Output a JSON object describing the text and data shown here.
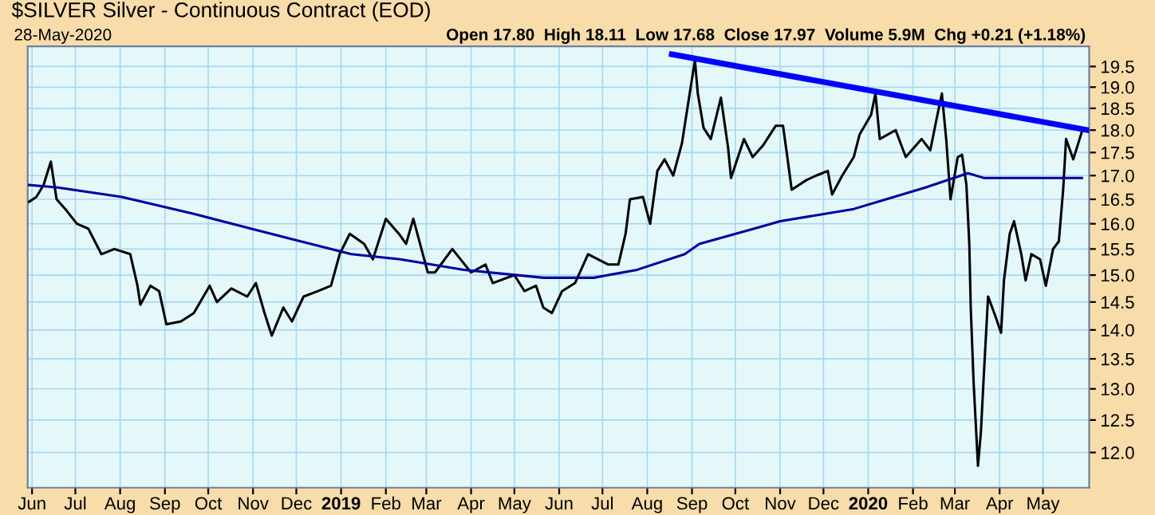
{
  "chart_data": {
    "type": "line",
    "title": "$SILVER Silver - Continuous Contract (EOD)",
    "subtitle": "28-May-2020",
    "annotations": [
      "Open 17.80  High 18.11  Low 17.68  Close 17.97  Volume 5.9M  Chg +0.21 (+1.18%)"
    ],
    "log": "y",
    "grid": true,
    "marker": "none",
    "line_style": "solid",
    "xlim": [
      "2018-05-29",
      "2020-06-02"
    ],
    "ylim": [
      11.48,
      20.0
    ],
    "yticks": [
      {
        "value": 12,
        "label": "12.0"
      },
      {
        "value": 12.5,
        "label": "12.5"
      },
      {
        "value": 13,
        "label": "13.0"
      },
      {
        "value": 13.5,
        "label": "13.5"
      },
      {
        "value": 14,
        "label": "14.0"
      },
      {
        "value": 14.5,
        "label": "14.5"
      },
      {
        "value": 15,
        "label": "15.0"
      },
      {
        "value": 15.5,
        "label": "15.5"
      },
      {
        "value": 16,
        "label": "16.0"
      },
      {
        "value": 16.5,
        "label": "16.5"
      },
      {
        "value": 17,
        "label": "17.0"
      },
      {
        "value": 17.5,
        "label": "17.5"
      },
      {
        "value": 18,
        "label": "18.0"
      },
      {
        "value": 18.5,
        "label": "18.5"
      },
      {
        "value": 19,
        "label": "19.0"
      },
      {
        "value": 19.5,
        "label": "19.5"
      }
    ],
    "xticks": [
      {
        "value": "2018-06-01",
        "label": "Jun"
      },
      {
        "value": "2018-07-01",
        "label": "Jul"
      },
      {
        "value": "2018-08-01",
        "label": "Aug"
      },
      {
        "value": "2018-09-01",
        "label": "Sep"
      },
      {
        "value": "2018-10-01",
        "label": "Oct"
      },
      {
        "value": "2018-11-01",
        "label": "Nov"
      },
      {
        "value": "2018-12-01",
        "label": "Dec"
      },
      {
        "value": "2019-01-01",
        "label": "2019"
      },
      {
        "value": "2019-02-01",
        "label": "Feb"
      },
      {
        "value": "2019-03-01",
        "label": "Mar"
      },
      {
        "value": "2019-04-01",
        "label": "Apr"
      },
      {
        "value": "2019-05-01",
        "label": "May"
      },
      {
        "value": "2019-06-01",
        "label": "Jun"
      },
      {
        "value": "2019-07-01",
        "label": "Jul"
      },
      {
        "value": "2019-08-01",
        "label": "Aug"
      },
      {
        "value": "2019-09-01",
        "label": "Sep"
      },
      {
        "value": "2019-10-01",
        "label": "Oct"
      },
      {
        "value": "2019-11-01",
        "label": "Nov"
      },
      {
        "value": "2019-12-01",
        "label": "Dec"
      },
      {
        "value": "2020-01-01",
        "label": "2020"
      },
      {
        "value": "2020-02-01",
        "label": "Feb"
      },
      {
        "value": "2020-03-01",
        "label": "Mar"
      },
      {
        "value": "2020-04-01",
        "label": "Apr"
      },
      {
        "value": "2020-05-01",
        "label": "May"
      }
    ],
    "series": [
      {
        "color": "#000000",
        "x": [
          "2018-05-30",
          "2018-06-04",
          "2018-06-09",
          "2018-06-14",
          "2018-06-18",
          "2018-06-24",
          "2018-07-02",
          "2018-07-10",
          "2018-07-19",
          "2018-07-28",
          "2018-08-08",
          "2018-08-13",
          "2018-08-15",
          "2018-08-22",
          "2018-08-28",
          "2018-09-02",
          "2018-09-12",
          "2018-09-21",
          "2018-10-02",
          "2018-10-07",
          "2018-10-17",
          "2018-10-28",
          "2018-11-03",
          "2018-11-09",
          "2018-11-14",
          "2018-11-22",
          "2018-11-28",
          "2018-12-06",
          "2018-12-16",
          "2018-12-25",
          "2018-12-31",
          "2019-01-07",
          "2019-01-17",
          "2019-01-23",
          "2019-02-01",
          "2019-02-10",
          "2019-02-15",
          "2019-02-20",
          "2019-03-02",
          "2019-03-07",
          "2019-03-19",
          "2019-04-01",
          "2019-04-11",
          "2019-04-16",
          "2019-05-01",
          "2019-05-08",
          "2019-05-16",
          "2019-05-21",
          "2019-05-27",
          "2019-06-03",
          "2019-06-12",
          "2019-06-21",
          "2019-07-05",
          "2019-07-12",
          "2019-07-17",
          "2019-07-20",
          "2019-07-29",
          "2019-08-03",
          "2019-08-08",
          "2019-08-13",
          "2019-08-19",
          "2019-08-25",
          "2019-08-29",
          "2019-09-03",
          "2019-09-05",
          "2019-09-09",
          "2019-09-14",
          "2019-09-21",
          "2019-09-26",
          "2019-09-28",
          "2019-10-07",
          "2019-10-13",
          "2019-10-20",
          "2019-10-29",
          "2019-11-03",
          "2019-11-06",
          "2019-11-09",
          "2019-11-19",
          "2019-11-26",
          "2019-12-04",
          "2019-12-07",
          "2019-12-14",
          "2019-12-22",
          "2019-12-26",
          "2020-01-03",
          "2020-01-06",
          "2020-01-09",
          "2020-01-20",
          "2020-01-27",
          "2020-02-07",
          "2020-02-13",
          "2020-02-17",
          "2020-02-21",
          "2020-02-24",
          "2020-02-27",
          "2020-03-03",
          "2020-03-06",
          "2020-03-09",
          "2020-03-11",
          "2020-03-12",
          "2020-03-14",
          "2020-03-17",
          "2020-03-19",
          "2020-03-21",
          "2020-03-24",
          "2020-03-29",
          "2020-04-02",
          "2020-04-04",
          "2020-04-08",
          "2020-04-11",
          "2020-04-16",
          "2020-04-19",
          "2020-04-23",
          "2020-04-29",
          "2020-05-03",
          "2020-05-08",
          "2020-05-12",
          "2020-05-15",
          "2020-05-17",
          "2020-05-22",
          "2020-05-28"
        ],
        "values": [
          16.45,
          16.55,
          16.8,
          17.3,
          16.5,
          16.3,
          16.0,
          15.9,
          15.4,
          15.5,
          15.4,
          14.8,
          14.45,
          14.8,
          14.7,
          14.1,
          14.15,
          14.3,
          14.8,
          14.5,
          14.75,
          14.6,
          14.85,
          14.3,
          13.9,
          14.4,
          14.15,
          14.6,
          14.7,
          14.8,
          15.4,
          15.8,
          15.6,
          15.3,
          16.1,
          15.8,
          15.6,
          16.1,
          15.05,
          15.05,
          15.5,
          15.05,
          15.2,
          14.85,
          15.0,
          14.7,
          14.8,
          14.4,
          14.3,
          14.7,
          14.85,
          15.4,
          15.2,
          15.2,
          15.8,
          16.5,
          16.55,
          16.0,
          17.1,
          17.35,
          17.0,
          17.7,
          18.55,
          19.65,
          18.85,
          18.05,
          17.8,
          18.75,
          17.6,
          16.95,
          17.8,
          17.4,
          17.65,
          18.1,
          18.1,
          17.4,
          16.7,
          16.9,
          17.0,
          17.1,
          16.6,
          17.0,
          17.4,
          17.9,
          18.35,
          18.85,
          17.8,
          18.0,
          17.4,
          17.8,
          17.55,
          18.2,
          18.85,
          17.8,
          16.5,
          17.4,
          17.45,
          16.8,
          15.6,
          14.4,
          13.1,
          11.8,
          12.3,
          13.2,
          14.6,
          14.25,
          13.95,
          14.9,
          15.8,
          16.05,
          15.4,
          14.9,
          15.4,
          15.3,
          14.8,
          15.5,
          15.65,
          16.7,
          17.8,
          17.35,
          17.97
        ]
      },
      {
        "color": "#0000a0",
        "x": [
          "2018-05-30",
          "2018-06-18",
          "2018-08-02",
          "2018-09-21",
          "2018-10-31",
          "2018-12-04",
          "2019-01-08",
          "2019-02-11",
          "2019-03-27",
          "2019-05-21",
          "2019-06-25",
          "2019-07-25",
          "2019-08-27",
          "2019-09-06",
          "2019-10-20",
          "2019-11-01",
          "2019-12-22",
          "2020-02-10",
          "2020-03-10",
          "2020-03-21",
          "2020-05-05",
          "2020-05-28"
        ],
        "values": [
          16.8,
          16.75,
          16.55,
          16.2,
          15.9,
          15.65,
          15.4,
          15.3,
          15.1,
          14.95,
          14.95,
          15.1,
          15.4,
          15.6,
          15.95,
          16.05,
          16.3,
          16.75,
          17.05,
          16.95,
          16.95,
          16.95
        ]
      },
      {
        "color": "#0000ff",
        "x": [
          "2019-08-18",
          "2020-06-01"
        ],
        "values": [
          19.8,
          18.0
        ]
      }
    ]
  }
}
